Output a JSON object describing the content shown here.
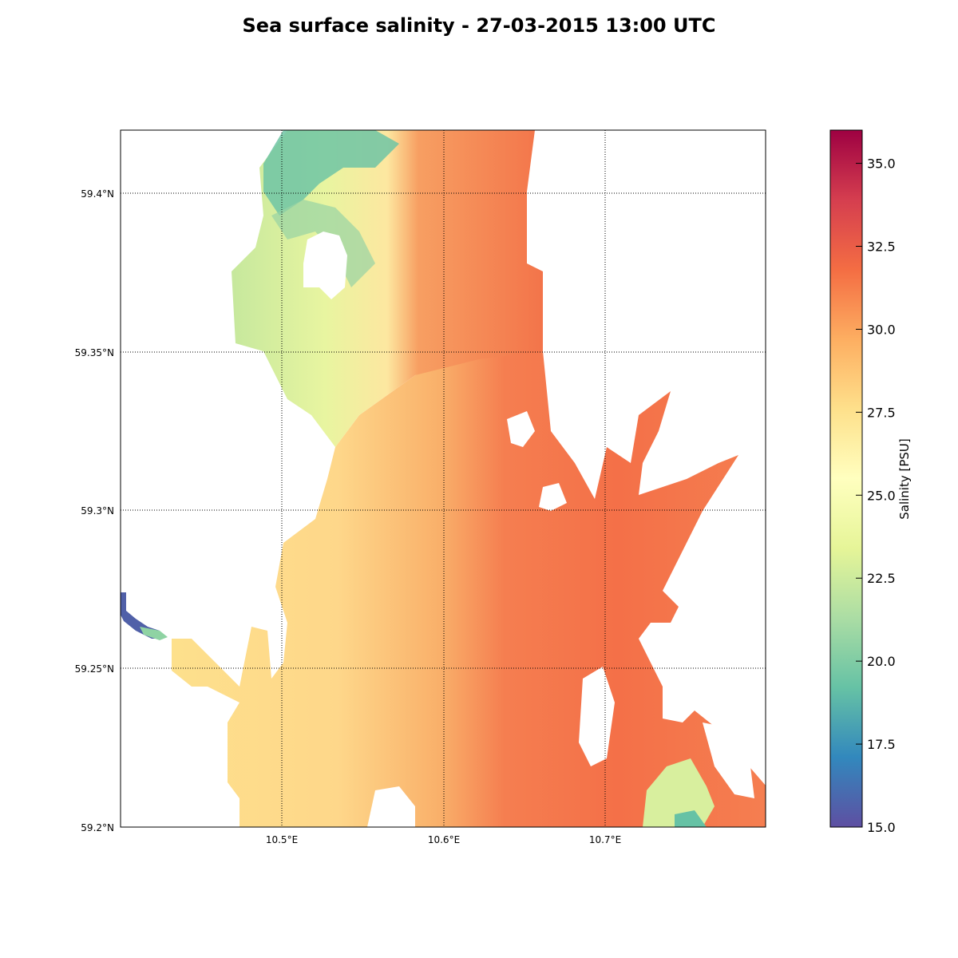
{
  "title": "Sea surface salinity - 27-03-2015 13:00 UTC",
  "map": {
    "lon_range": [
      10.4,
      10.8
    ],
    "lat_range": [
      59.2,
      59.42
    ],
    "lon_ticks": [
      {
        "value": 10.5,
        "label": "10.5°E"
      },
      {
        "value": 10.6,
        "label": "10.6°E"
      },
      {
        "value": 10.7,
        "label": "10.7°E"
      }
    ],
    "lat_ticks": [
      {
        "value": 59.4,
        "label": "59.4°N"
      },
      {
        "value": 59.35,
        "label": "59.35°N"
      },
      {
        "value": 59.3,
        "label": "59.3°N"
      },
      {
        "value": 59.25,
        "label": "59.25°N"
      },
      {
        "value": 59.2,
        "label": "59.2°N"
      }
    ],
    "grid": true
  },
  "colorbar": {
    "label": "Salinity [PSU]",
    "min": 15.0,
    "max": 36.0,
    "colormap": "Spectral_r",
    "ticks": [
      {
        "value": 15.0,
        "label": "15.0"
      },
      {
        "value": 17.5,
        "label": "17.5"
      },
      {
        "value": 20.0,
        "label": "20.0"
      },
      {
        "value": 22.5,
        "label": "22.5"
      },
      {
        "value": 25.0,
        "label": "25.0"
      },
      {
        "value": 27.5,
        "label": "27.5"
      },
      {
        "value": 30.0,
        "label": "30.0"
      },
      {
        "value": 32.5,
        "label": "32.5"
      },
      {
        "value": 35.0,
        "label": "35.0"
      }
    ],
    "colors": [
      "#5e4fa2",
      "#3288bd",
      "#66c2a5",
      "#abdda4",
      "#e6f598",
      "#ffffbf",
      "#fee08b",
      "#fdae61",
      "#f46d43",
      "#d53e4f",
      "#9e0142"
    ]
  }
}
